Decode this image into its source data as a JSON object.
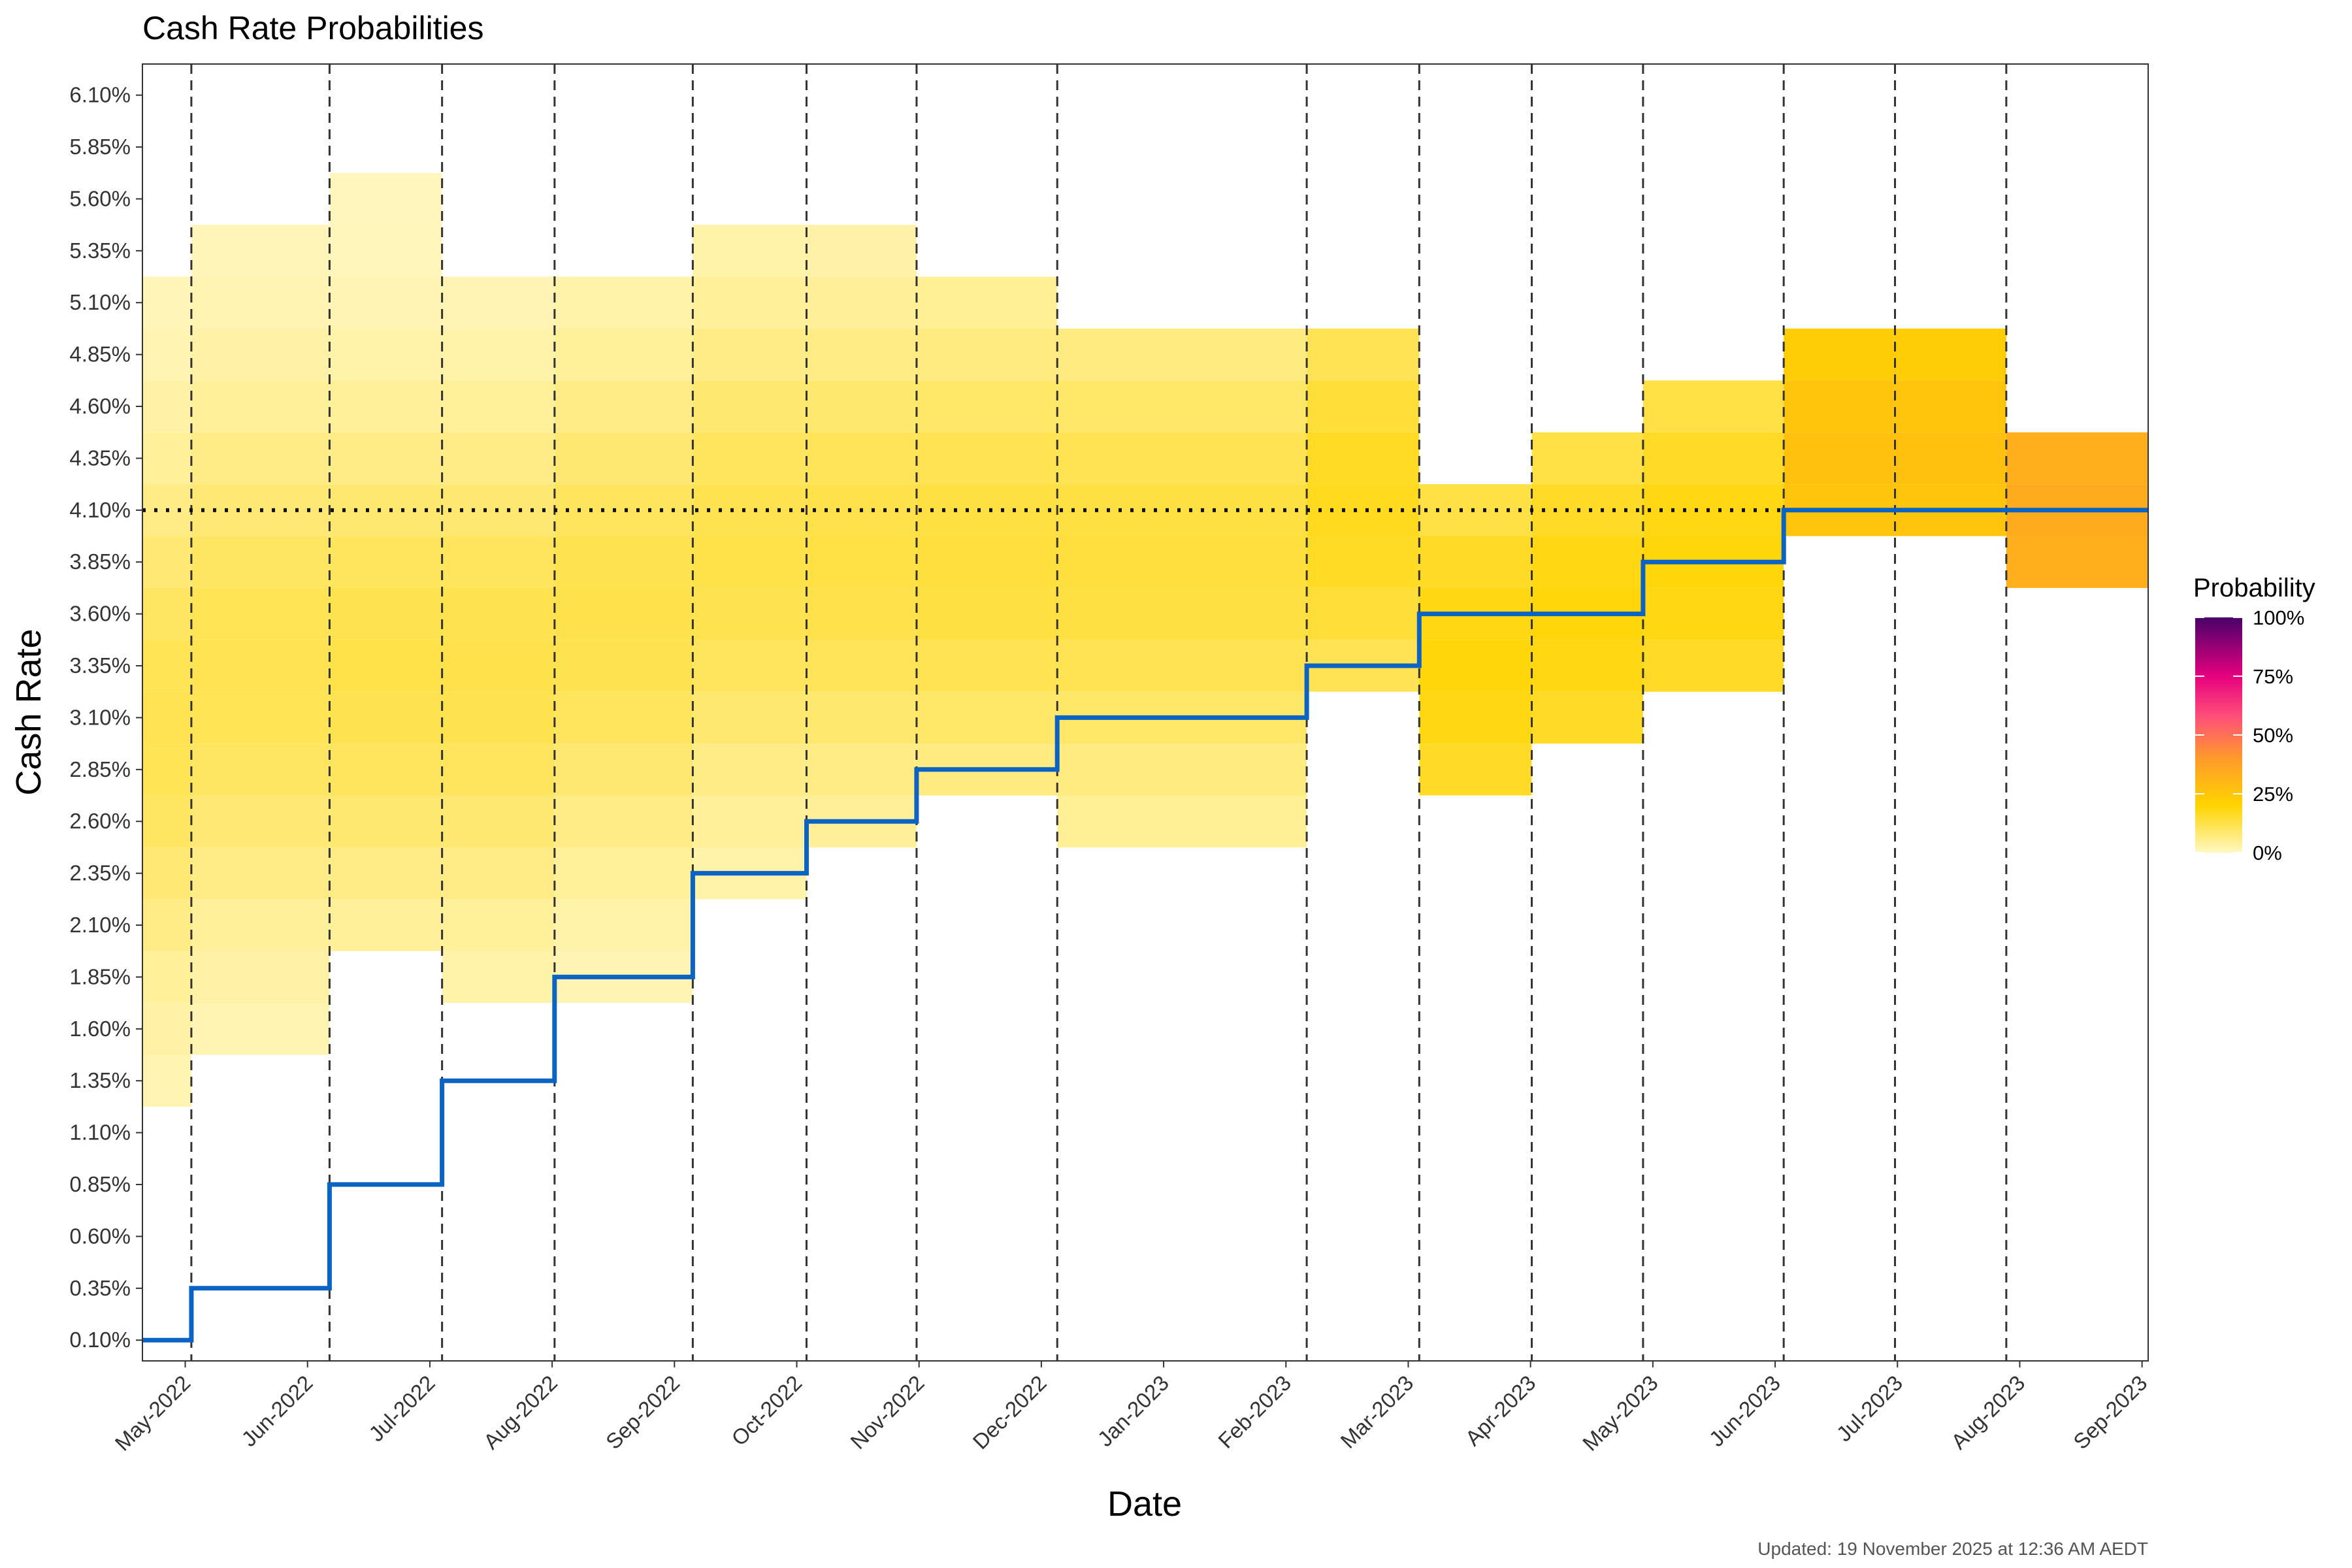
{
  "chart_data": {
    "type": "heatmap",
    "title": "Cash Rate Probabilities",
    "xlabel": "Date",
    "ylabel": "Cash Rate",
    "x_ticks": [
      "May-2022",
      "Jun-2022",
      "Jul-2022",
      "Aug-2022",
      "Sep-2022",
      "Oct-2022",
      "Nov-2022",
      "Dec-2022",
      "Jan-2023",
      "Feb-2023",
      "Mar-2023",
      "Apr-2023",
      "May-2023",
      "Jun-2023",
      "Jul-2023",
      "Aug-2023",
      "Sep-2023"
    ],
    "y_ticks": [
      "0.10%",
      "0.35%",
      "0.60%",
      "0.85%",
      "1.10%",
      "1.35%",
      "1.60%",
      "1.85%",
      "2.10%",
      "2.35%",
      "2.60%",
      "2.85%",
      "3.10%",
      "3.35%",
      "3.60%",
      "3.85%",
      "4.10%",
      "4.35%",
      "4.60%",
      "4.85%",
      "5.10%",
      "5.35%",
      "5.60%",
      "5.85%",
      "6.10%"
    ],
    "ylim": [
      0.0,
      6.25
    ],
    "xlim": [
      -0.35,
      16.05
    ],
    "legend": {
      "title": "Probability",
      "labels": [
        "100%",
        "75%",
        "50%",
        "25%",
        "0%"
      ],
      "colors": [
        "#fff7c2",
        "#ffd400",
        "#ff9a2a",
        "#ff4f7a",
        "#e6007e",
        "#4a006a"
      ]
    },
    "meeting_lines_x": [
      0.05,
      1.18,
      2.1,
      3.02,
      4.15,
      5.08,
      5.98,
      7.13,
      9.17,
      10.09,
      11.01,
      11.92,
      13.07,
      13.98,
      14.89
    ],
    "reference_rate": 4.1,
    "rate_path": [
      [
        -0.35,
        0.1
      ],
      [
        0.05,
        0.1
      ],
      [
        0.05,
        0.35
      ],
      [
        1.18,
        0.35
      ],
      [
        1.18,
        0.85
      ],
      [
        2.1,
        0.85
      ],
      [
        2.1,
        1.35
      ],
      [
        3.02,
        1.35
      ],
      [
        3.02,
        1.85
      ],
      [
        4.15,
        1.85
      ],
      [
        4.15,
        2.35
      ],
      [
        5.08,
        2.35
      ],
      [
        5.08,
        2.6
      ],
      [
        5.98,
        2.6
      ],
      [
        5.98,
        2.85
      ],
      [
        7.13,
        2.85
      ],
      [
        7.13,
        3.1
      ],
      [
        9.17,
        3.1
      ],
      [
        9.17,
        3.35
      ],
      [
        10.09,
        3.35
      ],
      [
        10.09,
        3.6
      ],
      [
        11.92,
        3.6
      ],
      [
        11.92,
        3.85
      ],
      [
        13.07,
        3.85
      ],
      [
        13.07,
        4.1
      ],
      [
        16.05,
        4.1
      ]
    ],
    "segments": [
      {
        "x0": -0.35,
        "x1": 0.05,
        "low": 1.35,
        "high": 5.1,
        "mode": 3.1
      },
      {
        "x0": 0.05,
        "x1": 1.18,
        "low": 1.6,
        "high": 5.35,
        "mode": 3.35
      },
      {
        "x0": 1.18,
        "x1": 2.1,
        "low": 2.1,
        "high": 5.6,
        "mode": 3.35
      },
      {
        "x0": 2.1,
        "x1": 3.02,
        "low": 1.85,
        "high": 5.1,
        "mode": 3.35
      },
      {
        "x0": 3.02,
        "x1": 4.15,
        "low": 1.85,
        "high": 5.1,
        "mode": 3.6
      },
      {
        "x0": 4.15,
        "x1": 5.08,
        "low": 2.35,
        "high": 5.35,
        "mode": 3.85
      },
      {
        "x0": 5.08,
        "x1": 5.98,
        "low": 2.6,
        "high": 5.35,
        "mode": 3.85
      },
      {
        "x0": 5.98,
        "x1": 7.13,
        "low": 2.85,
        "high": 5.1,
        "mode": 3.85
      },
      {
        "x0": 7.13,
        "x1": 9.17,
        "low": 2.6,
        "high": 4.85,
        "mode": 3.85
      },
      {
        "x0": 9.17,
        "x1": 10.09,
        "low": 3.35,
        "high": 4.85,
        "mode": 4.1
      },
      {
        "x0": 10.09,
        "x1": 11.01,
        "low": 2.85,
        "high": 4.1,
        "mode": 3.35
      },
      {
        "x0": 11.01,
        "x1": 11.92,
        "low": 3.1,
        "high": 4.35,
        "mode": 3.6
      },
      {
        "x0": 11.92,
        "x1": 13.07,
        "low": 3.35,
        "high": 4.6,
        "mode": 3.85
      },
      {
        "x0": 13.07,
        "x1": 14.89,
        "low": 4.1,
        "high": 4.85,
        "mode": 4.35
      },
      {
        "x0": 14.89,
        "x1": 16.05,
        "low": 3.85,
        "high": 4.35,
        "mode": 4.1
      }
    ]
  },
  "caption": "Updated: 19 November 2025 at 12:36 AM AEDT"
}
